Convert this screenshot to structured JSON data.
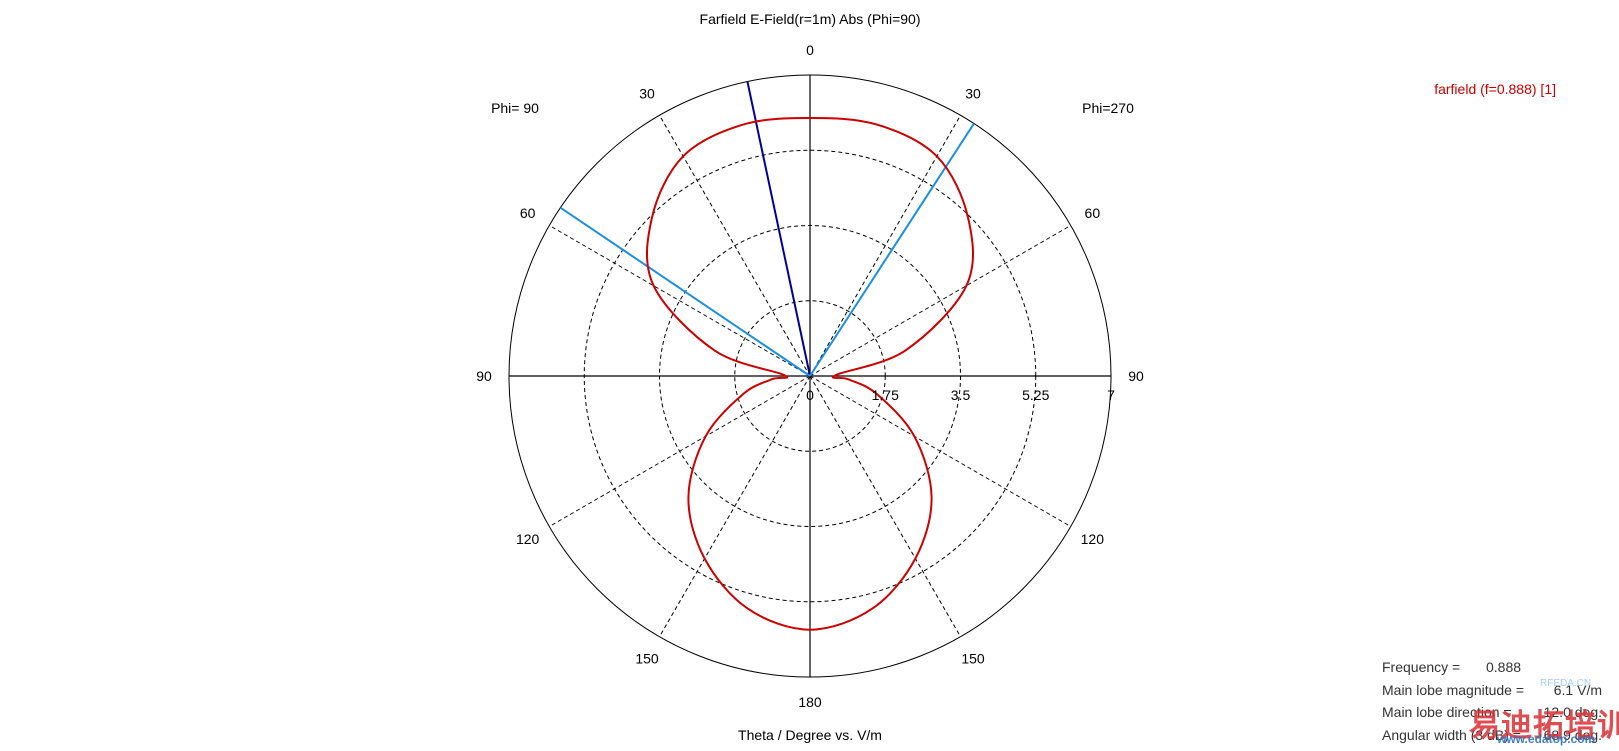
{
  "chart_data": {
    "type": "polar",
    "title": "Farfield E-Field(r=1m) Abs (Phi=90)",
    "xlabel": "Theta / Degree vs. V/m",
    "left_label": "Phi= 90",
    "right_label": "Phi=270",
    "rmax": 7,
    "radial_ticks": [
      "0",
      "1.75",
      "3.5",
      "5.25",
      "7"
    ],
    "radial_tick_values": [
      0,
      1.75,
      3.5,
      5.25,
      7
    ],
    "angle_labels": [
      {
        "text": "0",
        "angle": 0
      },
      {
        "text": "30",
        "angle": -30
      },
      {
        "text": "30",
        "angle": 30
      },
      {
        "text": "60",
        "angle": -60
      },
      {
        "text": "60",
        "angle": 60
      },
      {
        "text": "90",
        "angle": -90
      },
      {
        "text": "90",
        "angle": 90
      },
      {
        "text": "120",
        "angle": -120
      },
      {
        "text": "120",
        "angle": 120
      },
      {
        "text": "150",
        "angle": -150
      },
      {
        "text": "150",
        "angle": 150
      },
      {
        "text": "180",
        "angle": 180
      }
    ],
    "grid": true,
    "legend_position": "top-right",
    "series": [
      {
        "name": "farfield (f=0.888) [1]",
        "color": "#cc0000",
        "points": [
          [
            0,
            6.0
          ],
          [
            -15,
            6.05
          ],
          [
            -30,
            5.9
          ],
          [
            -45,
            5.2
          ],
          [
            -60,
            4.2
          ],
          [
            -75,
            2.3
          ],
          [
            -88,
            0.6
          ],
          [
            -95,
            0.9
          ],
          [
            -105,
            1.6
          ],
          [
            -120,
            2.8
          ],
          [
            -135,
            4.0
          ],
          [
            -150,
            4.9
          ],
          [
            -165,
            5.6
          ],
          [
            180,
            5.9
          ],
          [
            165,
            5.6
          ],
          [
            150,
            4.9
          ],
          [
            135,
            4.0
          ],
          [
            120,
            2.8
          ],
          [
            105,
            1.6
          ],
          [
            95,
            0.9
          ],
          [
            88,
            0.6
          ],
          [
            75,
            2.3
          ],
          [
            60,
            4.2
          ],
          [
            45,
            5.2
          ],
          [
            30,
            5.9
          ],
          [
            15,
            6.05
          ],
          [
            0,
            6.0
          ]
        ]
      }
    ],
    "markers": [
      {
        "name": "main lobe direction",
        "angle": -12,
        "color": "#000099"
      },
      {
        "name": "3 dB angular width",
        "angle": -56,
        "color": "#1a8fe0"
      },
      {
        "name": "3 dB angular width",
        "angle": 33,
        "color": "#1a8fe0"
      }
    ],
    "info": [
      {
        "label": "Frequency =",
        "value": "0.888"
      },
      {
        "label": "Main lobe magnitude =",
        "value": "6.1 V/m"
      },
      {
        "label": "Main lobe direction =",
        "value": "12.0 deg."
      },
      {
        "label": "Angular width (3 dB) =",
        "value": "68.9 deg."
      }
    ]
  },
  "watermark": {
    "cn": "易迪拓培训",
    "url": "www.edatop.com",
    "sub": "RFEDA.CN"
  }
}
